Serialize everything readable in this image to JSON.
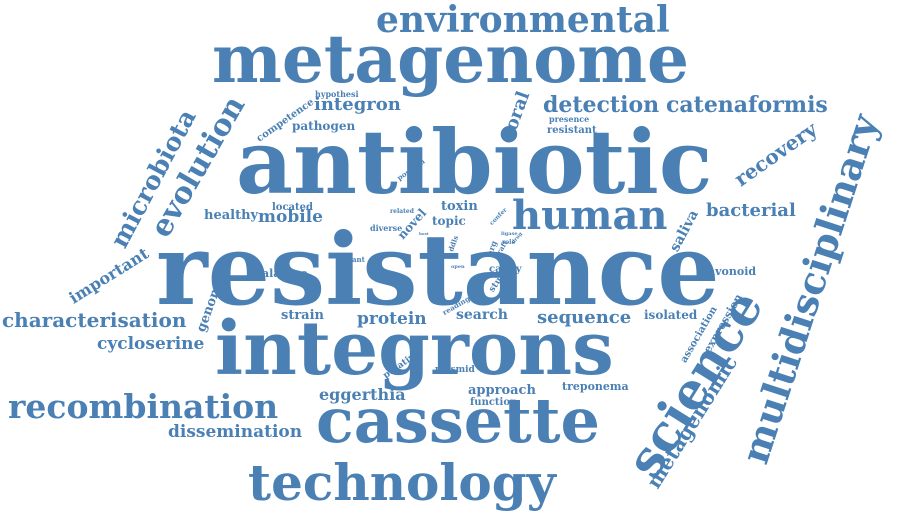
{
  "cloud": {
    "color": "#4a80b4",
    "words": [
      "resistance",
      "antibiotic",
      "integrons",
      "metagenome",
      "cassette",
      "technology",
      "science",
      "multidisciplinary",
      "environmental",
      "human",
      "recombination",
      "evolution",
      "microbiota",
      "metagenomic",
      "detection",
      "catenaformis",
      "characterisation",
      "bacterial",
      "recovery",
      "dissemination",
      "cycloserine",
      "integron",
      "sequence",
      "protein",
      "important",
      "genome",
      "mobile",
      "healthy",
      "oral",
      "eggerthia",
      "saliva",
      "search",
      "strain",
      "approach",
      "toxin",
      "novel",
      "topic",
      "isolated",
      "expression",
      "association",
      "pathogen",
      "competence",
      "alanine",
      "treponema",
      "flavonoid",
      "plasmid",
      "function",
      "putative",
      "cavity",
      "study",
      "located",
      "hypothesi",
      "presence",
      "resistant",
      "diverse",
      "related",
      "variant",
      "reading",
      "position",
      "frame",
      "ddls",
      "open",
      "arg",
      "draft",
      "role",
      "ligase",
      "drug",
      "confer",
      "host"
    ]
  }
}
